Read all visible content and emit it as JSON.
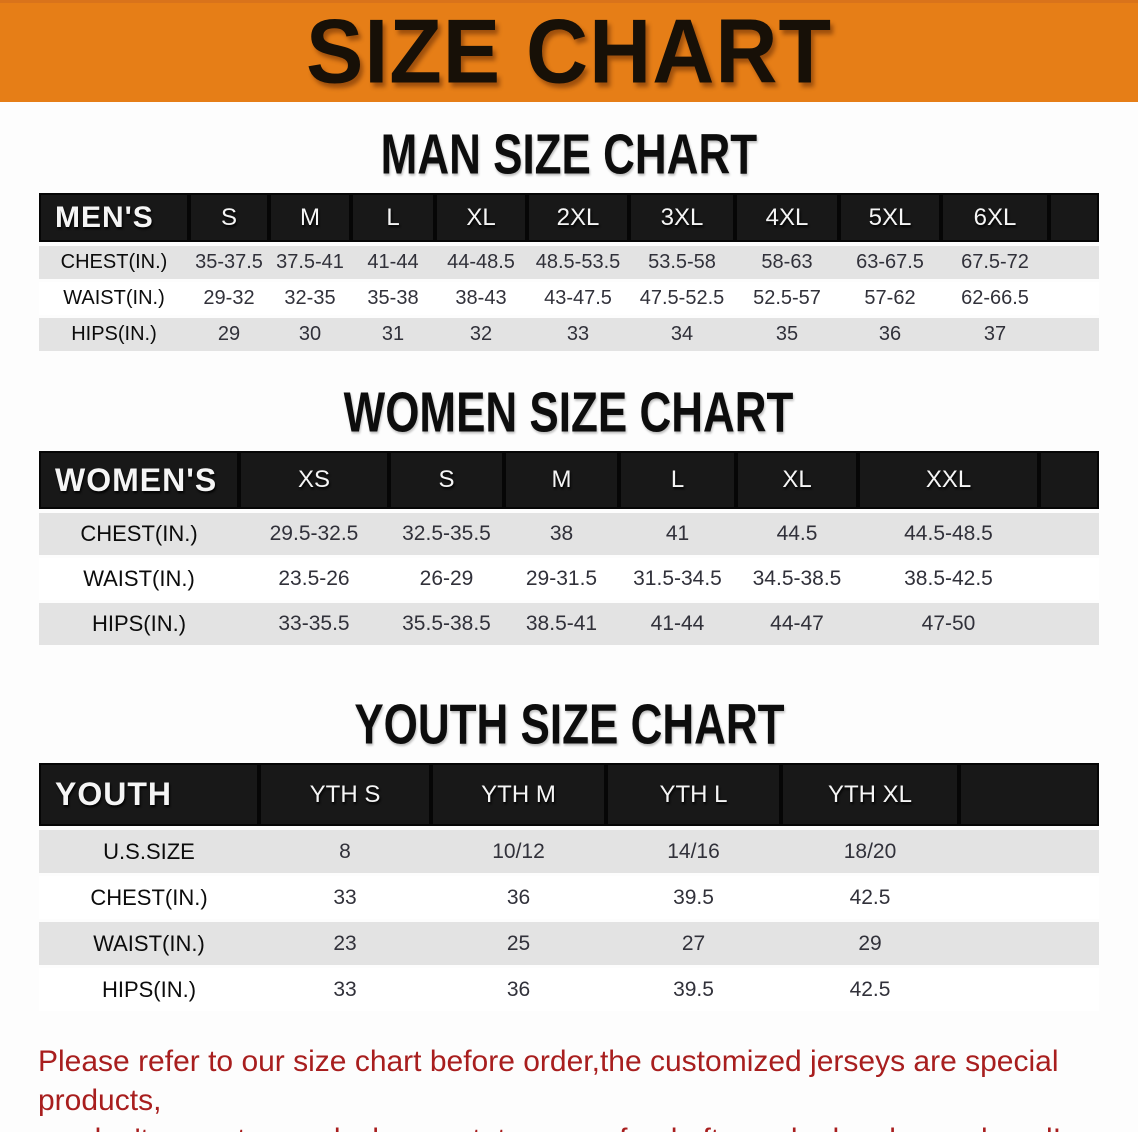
{
  "banner": {
    "title": "SIZE CHART"
  },
  "men": {
    "heading": "MAN SIZE CHART",
    "table": {
      "header": [
        "MEN'S",
        "S",
        "M",
        "L",
        "XL",
        "2XL",
        "3XL",
        "4XL",
        "5XL",
        "6XL",
        ""
      ],
      "rows": [
        [
          "CHEST(IN.)",
          "35-37.5",
          "37.5-41",
          "41-44",
          "44-48.5",
          "48.5-53.5",
          "53.5-58",
          "58-63",
          "63-67.5",
          "67.5-72",
          ""
        ],
        [
          "WAIST(IN.)",
          "29-32",
          "32-35",
          "35-38",
          "38-43",
          "43-47.5",
          "47.5-52.5",
          "52.5-57",
          "57-62",
          "62-66.5",
          ""
        ],
        [
          "HIPS(IN.)",
          "29",
          "30",
          "31",
          "32",
          "33",
          "34",
          "35",
          "36",
          "37",
          ""
        ]
      ]
    }
  },
  "women": {
    "heading": "WOMEN SIZE CHART",
    "table": {
      "header": [
        "WOMEN'S",
        "XS",
        "S",
        "M",
        "L",
        "XL",
        "XXL",
        ""
      ],
      "rows": [
        [
          "CHEST(IN.)",
          "29.5-32.5",
          "32.5-35.5",
          "38",
          "41",
          "44.5",
          "44.5-48.5",
          ""
        ],
        [
          "WAIST(IN.)",
          "23.5-26",
          "26-29",
          "29-31.5",
          "31.5-34.5",
          "34.5-38.5",
          "38.5-42.5",
          ""
        ],
        [
          "HIPS(IN.)",
          "33-35.5",
          "35.5-38.5",
          "38.5-41",
          "41-44",
          "44-47",
          "47-50",
          ""
        ]
      ]
    }
  },
  "youth": {
    "heading": "YOUTH SIZE CHART",
    "table": {
      "header": [
        "YOUTH",
        "YTH S",
        "YTH M",
        "YTH L",
        "YTH XL",
        ""
      ],
      "rows": [
        [
          "U.S.SIZE",
          "8",
          "10/12",
          "14/16",
          "18/20",
          ""
        ],
        [
          "CHEST(IN.)",
          "33",
          "36",
          "39.5",
          "42.5",
          ""
        ],
        [
          "WAIST(IN.)",
          "23",
          "25",
          "27",
          "29",
          ""
        ],
        [
          "HIPS(IN.)",
          "33",
          "36",
          "39.5",
          "42.5",
          ""
        ]
      ]
    }
  },
  "disclaimer": {
    "line1": "Please refer to our size chart before order,the customized jerseys are special products,",
    "line2": "we don't accept cancel, change, teturn or refund after order has been placed!"
  },
  "colors": {
    "banner_bg": "#e67e17",
    "table_header_bg": "#181818",
    "row_stripe": "#e3e3e3",
    "disclaimer_color": "#a81e1e"
  }
}
